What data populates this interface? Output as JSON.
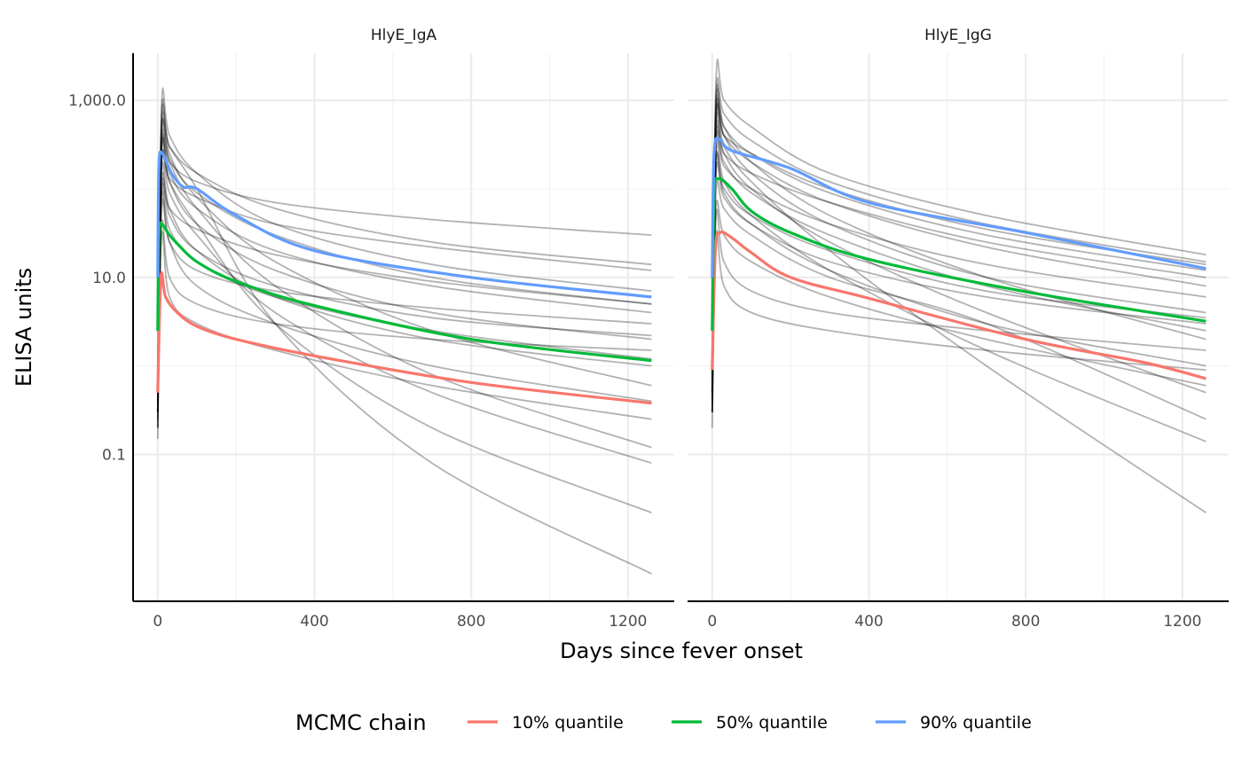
{
  "chart_data": {
    "type": "line",
    "xlabel": "Days since fever onset",
    "ylabel": "ELISA units",
    "y_scale": "log10",
    "ylim": [
      0.0022,
      3400
    ],
    "xlim": [
      -63,
      1318
    ],
    "x_ticks": [
      "0",
      "400",
      "800",
      "1200"
    ],
    "x_tick_values": [
      0,
      400,
      800,
      1200
    ],
    "y_ticks": [
      "0.1",
      "10.0",
      "1,000.0"
    ],
    "y_tick_values": [
      0.1,
      10,
      1000
    ],
    "grid": true,
    "legend": {
      "title": "MCMC chain",
      "placement": "bottom",
      "entries": [
        {
          "label": "10% quantile",
          "color": "#F8766D"
        },
        {
          "label": "50% quantile",
          "color": "#00BA38"
        },
        {
          "label": "90% quantile",
          "color": "#619CFF"
        }
      ]
    },
    "sample_color": "#000000",
    "sample_x": [
      0,
      10,
      30,
      100,
      300,
      700,
      1260
    ],
    "panels": [
      {
        "title": "HlyE_IgA",
        "quantiles": [
          {
            "name": "10% quantile",
            "x": [
              0,
              8,
              20,
              50,
              100,
              200,
              400,
              800,
              1260
            ],
            "y": [
              0.5,
              10,
              6,
              4,
              2.8,
              2.0,
              1.3,
              0.65,
              0.38
            ]
          },
          {
            "name": "50% quantile",
            "x": [
              0,
              3,
              10,
              30,
              50,
              100,
              200,
              400,
              800,
              1260
            ],
            "y": [
              2.5,
              30,
              40,
              30,
              24,
              15,
              9,
              4.8,
              2.0,
              1.15
            ]
          },
          {
            "name": "90% quantile",
            "x": [
              0,
              3,
              12,
              35,
              65,
              100,
              200,
              400,
              800,
              1260
            ],
            "y": [
              10,
              180,
              250,
              150,
              105,
              100,
              50,
              20,
              10,
              6
            ]
          }
        ],
        "samples": [
          [
            1,
            300,
            200,
            120,
            70,
            45,
            30
          ],
          [
            0.5,
            500,
            300,
            150,
            60,
            25,
            14
          ],
          [
            0.8,
            200,
            130,
            80,
            40,
            22,
            12
          ],
          [
            0.3,
            900,
            400,
            150,
            40,
            14,
            7
          ],
          [
            0.5,
            100,
            60,
            35,
            18,
            9,
            5
          ],
          [
            0.2,
            60,
            25,
            12,
            7,
            4.5,
            3
          ],
          [
            1,
            300,
            120,
            40,
            12,
            4,
            2
          ],
          [
            0.4,
            40,
            10,
            5,
            3,
            2,
            1.5
          ],
          [
            0.3,
            150,
            60,
            20,
            6,
            2,
            1
          ],
          [
            0.2,
            700,
            250,
            80,
            15,
            2.5,
            0.6
          ],
          [
            0.5,
            80,
            25,
            8,
            3,
            1,
            0.4
          ],
          [
            0.3,
            30,
            6,
            3,
            1.5,
            0.6,
            0.25
          ],
          [
            0.2,
            400,
            200,
            60,
            8,
            0.8,
            0.12
          ],
          [
            0.3,
            200,
            90,
            30,
            4,
            0.5,
            0.08
          ],
          [
            0.15,
            250,
            120,
            40,
            3,
            0.2,
            0.022
          ],
          [
            0.3,
            600,
            300,
            100,
            3,
            0.08,
            0.0045
          ],
          [
            0.6,
            350,
            150,
            60,
            20,
            8,
            4
          ],
          [
            0.4,
            120,
            50,
            20,
            8,
            3.5,
            2.2
          ],
          [
            0.7,
            450,
            220,
            90,
            30,
            10,
            5
          ],
          [
            0.25,
            90,
            35,
            15,
            6,
            2.5,
            1.2
          ]
        ]
      },
      {
        "title": "HlyE_IgG",
        "quantiles": [
          {
            "name": "10% quantile",
            "x": [
              0,
              8,
              20,
              50,
              100,
              200,
              400,
              800,
              1100,
              1260
            ],
            "y": [
              0.9,
              20,
              32,
              28,
              19,
              10,
              5.8,
              2.0,
              1.1,
              0.72
            ]
          },
          {
            "name": "50% quantile",
            "x": [
              0,
              5,
              15,
              50,
              100,
              200,
              400,
              800,
              1260
            ],
            "y": [
              2.5,
              80,
              130,
              100,
              56,
              32,
              16,
              6.9,
              3.2
            ]
          },
          {
            "name": "90% quantile",
            "x": [
              0,
              5,
              20,
              50,
              200,
              400,
              800,
              1260
            ],
            "y": [
              10,
              250,
              360,
              270,
              170,
              70,
              32,
              12.6
            ]
          }
        ],
        "samples": [
          [
            0.5,
            1800,
            1000,
            500,
            150,
            50,
            18
          ],
          [
            1,
            1200,
            700,
            350,
            120,
            40,
            15
          ],
          [
            0.8,
            600,
            400,
            250,
            100,
            35,
            14
          ],
          [
            0.5,
            400,
            250,
            150,
            70,
            25,
            10
          ],
          [
            0.3,
            300,
            180,
            100,
            40,
            14,
            6
          ],
          [
            1,
            800,
            400,
            150,
            40,
            10,
            4
          ],
          [
            0.5,
            150,
            80,
            40,
            15,
            6,
            3
          ],
          [
            0.3,
            50,
            15,
            7,
            4,
            2.5,
            1.5
          ],
          [
            0.5,
            200,
            90,
            40,
            12,
            3,
            1
          ],
          [
            0.3,
            30,
            8,
            4,
            2.5,
            1.5,
            0.9
          ],
          [
            0.4,
            500,
            250,
            100,
            25,
            4,
            0.5
          ],
          [
            0.3,
            250,
            120,
            50,
            12,
            1.5,
            0.14
          ],
          [
            0.2,
            600,
            300,
            120,
            20,
            1,
            0.022
          ],
          [
            1,
            100,
            60,
            30,
            10,
            3,
            0.25
          ],
          [
            0.5,
            1000,
            500,
            200,
            50,
            10,
            2
          ],
          [
            0.6,
            700,
            400,
            200,
            70,
            22,
            8
          ],
          [
            0.4,
            350,
            200,
            90,
            30,
            8,
            2.5
          ],
          [
            0.7,
            900,
            500,
            250,
            90,
            30,
            12
          ],
          [
            0.3,
            180,
            100,
            50,
            20,
            7,
            3.5
          ],
          [
            0.5,
            60,
            30,
            15,
            6,
            2,
            0.6
          ]
        ]
      }
    ]
  }
}
